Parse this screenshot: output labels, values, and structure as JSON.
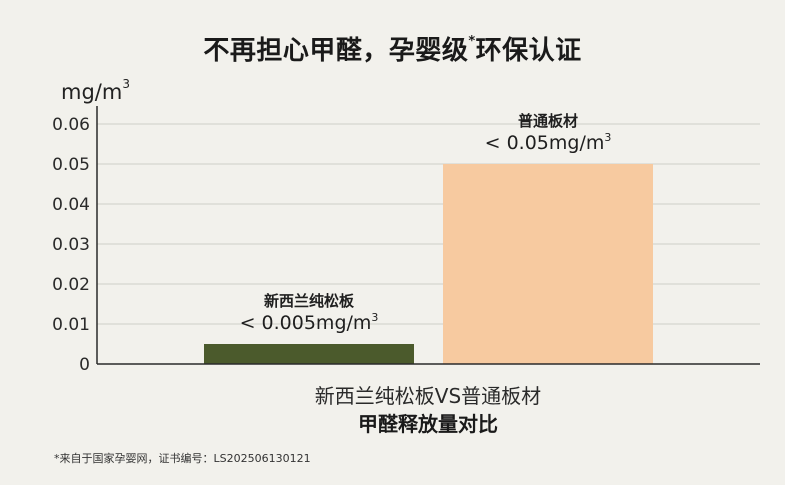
{
  "title": {
    "main_a": "不再担心甲醛，孕婴级",
    "sup": "*",
    "main_b": "环保认证"
  },
  "footnote": "*来自于国家孕婴网，证书编号：LS202506130121",
  "colors": {
    "background": "#f2f1ec",
    "bar_nz_pine": "#4b5a2c",
    "bar_common": "#f7caa0",
    "axis": "#2b2b2b",
    "grid": "#cfcfc8"
  },
  "chart_data": {
    "type": "bar",
    "y_unit": {
      "base": "mg/m",
      "sup": "3"
    },
    "yticks": [
      "0",
      "0.01",
      "0.02",
      "0.03",
      "0.04",
      "0.05",
      "0.06"
    ],
    "ylim": [
      0,
      0.06
    ],
    "grid": true,
    "categories": [
      "新西兰纯松板",
      "普通板材"
    ],
    "values": [
      0.005,
      0.05
    ],
    "value_labels": [
      {
        "name": "新西兰纯松板",
        "text": "< 0.005mg/m",
        "sup": "3"
      },
      {
        "name": "普通板材",
        "text": "< 0.05mg/m",
        "sup": "3"
      }
    ],
    "xlabel_line1": "新西兰纯松板VS普通板材",
    "xlabel_line2": "甲醛释放量对比"
  }
}
